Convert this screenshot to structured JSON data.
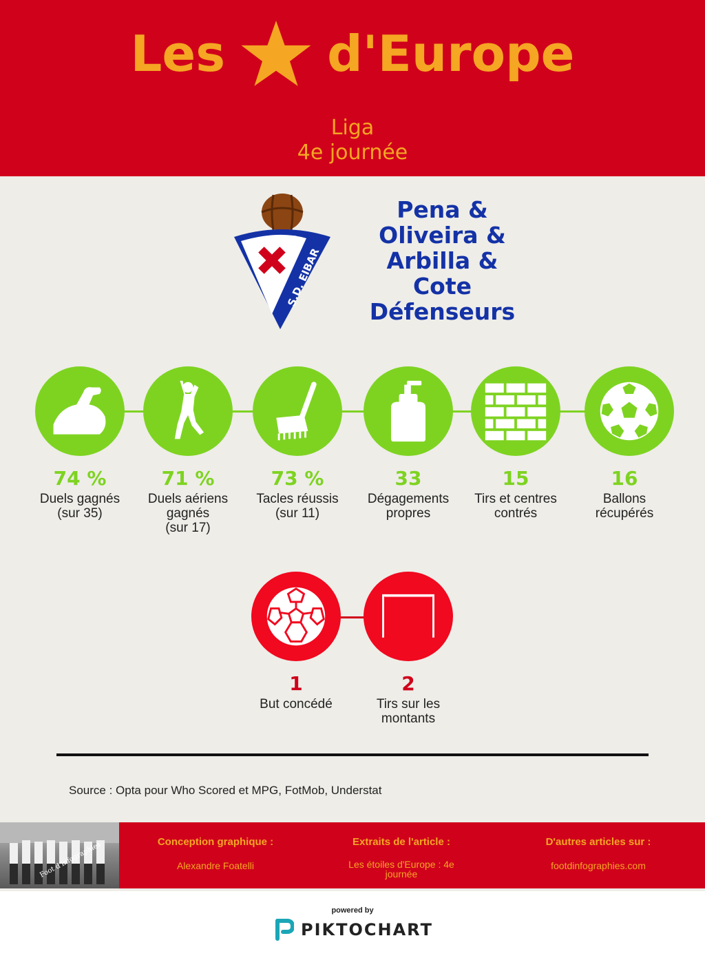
{
  "header": {
    "title_left": "Les",
    "title_right": "d'Europe",
    "subtitle_line1": "Liga",
    "subtitle_line2": "4e journée",
    "star_icon": "star-icon",
    "title_color": "#f5a623",
    "background_color": "#d0021b"
  },
  "club": {
    "crest_text": "S.D. EIBAR",
    "name_lines": [
      "Pena &",
      "Oliveira &",
      "Arbilla &",
      "Cote",
      "Défenseurs"
    ],
    "name_color": "#1432a6"
  },
  "stats": [
    {
      "value": "74 %",
      "label": "Duels gagnés\n(sur 35)",
      "icon": "flexed-arm-icon"
    },
    {
      "value": "71 %",
      "label": "Duels aériens\ngagnés\n(sur 17)",
      "icon": "jumping-player-icon"
    },
    {
      "value": "73 %",
      "label": "Tacles réussis\n(sur 11)",
      "icon": "rake-icon"
    },
    {
      "value": "33",
      "label": "Dégagements\npropres",
      "icon": "soap-bottle-icon"
    },
    {
      "value": "15",
      "label": "Tirs et centres\ncontrés",
      "icon": "brick-wall-icon"
    },
    {
      "value": "16",
      "label": "Ballons\nrécupérés",
      "icon": "football-icon"
    }
  ],
  "negative_stats": [
    {
      "value": "1",
      "label": "But concédé",
      "icon": "ball-icon"
    },
    {
      "value": "2",
      "label": "Tirs sur les\nmontants",
      "icon": "goal-frame-icon"
    }
  ],
  "colors": {
    "positive": "#7ed321",
    "negative": "#d0021b",
    "page_background": "#eeede8"
  },
  "source": "Source : Opta pour Who Scored et MPG, FotMob, Understat",
  "footer": {
    "photo_caption": "Foot d'infographies",
    "columns": [
      {
        "heading": "Conception graphique :",
        "text": "Alexandre Foatelli"
      },
      {
        "heading": "Extraits de l'article :",
        "text": "Les étoiles d'Europe : 4e journée"
      },
      {
        "heading": "D'autres articles sur :",
        "text": "footdinfographies.com"
      }
    ]
  },
  "branding": {
    "powered_by": "powered by",
    "name": "PIKTOCHART"
  }
}
